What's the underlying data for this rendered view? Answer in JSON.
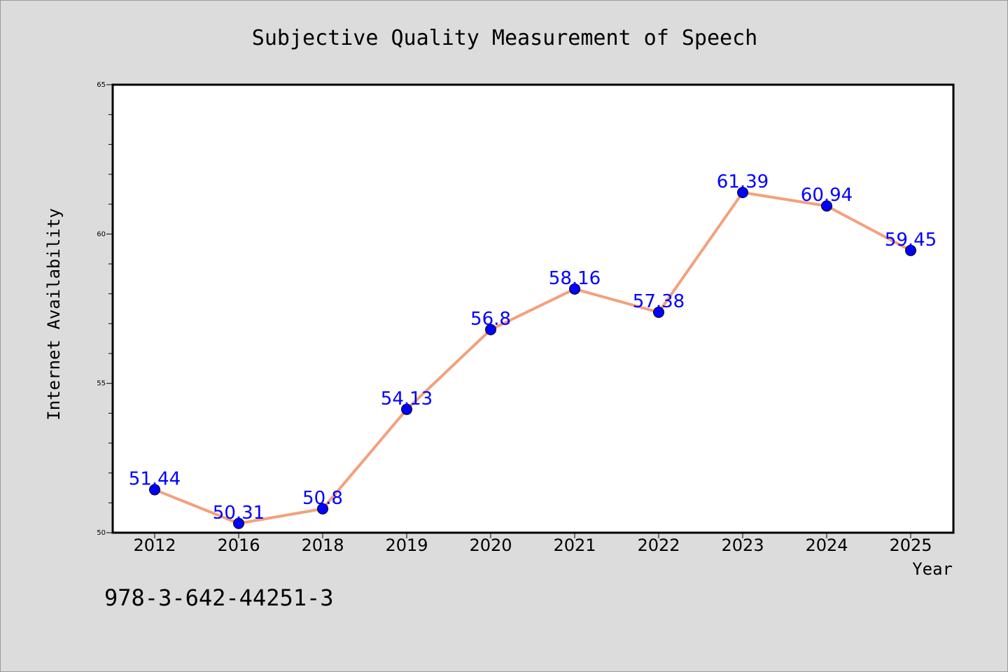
{
  "chart_data": {
    "type": "line",
    "title": "Subjective Quality Measurement of Speech",
    "xlabel": "Year",
    "ylabel": "Internet Availability",
    "categories": [
      "2012",
      "2016",
      "2018",
      "2019",
      "2020",
      "2021",
      "2022",
      "2023",
      "2024",
      "2025"
    ],
    "series": [
      {
        "values": [
          51.44,
          50.31,
          50.8,
          54.13,
          56.8,
          58.16,
          57.38,
          61.39,
          60.94,
          59.45
        ],
        "data_labels": [
          "51.44",
          "50.31",
          "50.8",
          "54.13",
          "56.8",
          "58.16",
          "57.38",
          "61.39",
          "60.94",
          "59.45"
        ]
      }
    ],
    "ylim": [
      50,
      65
    ],
    "yticks": [
      "50",
      "55",
      "60",
      "65"
    ],
    "grid": false,
    "legend": "none"
  },
  "footnote": "978-3-642-44251-3",
  "colors": {
    "background": "#dcdcdc",
    "plot_area": "#ffffff",
    "line": "#f4a07e",
    "marker": "#0000ff",
    "data_label": "#0000ff"
  }
}
